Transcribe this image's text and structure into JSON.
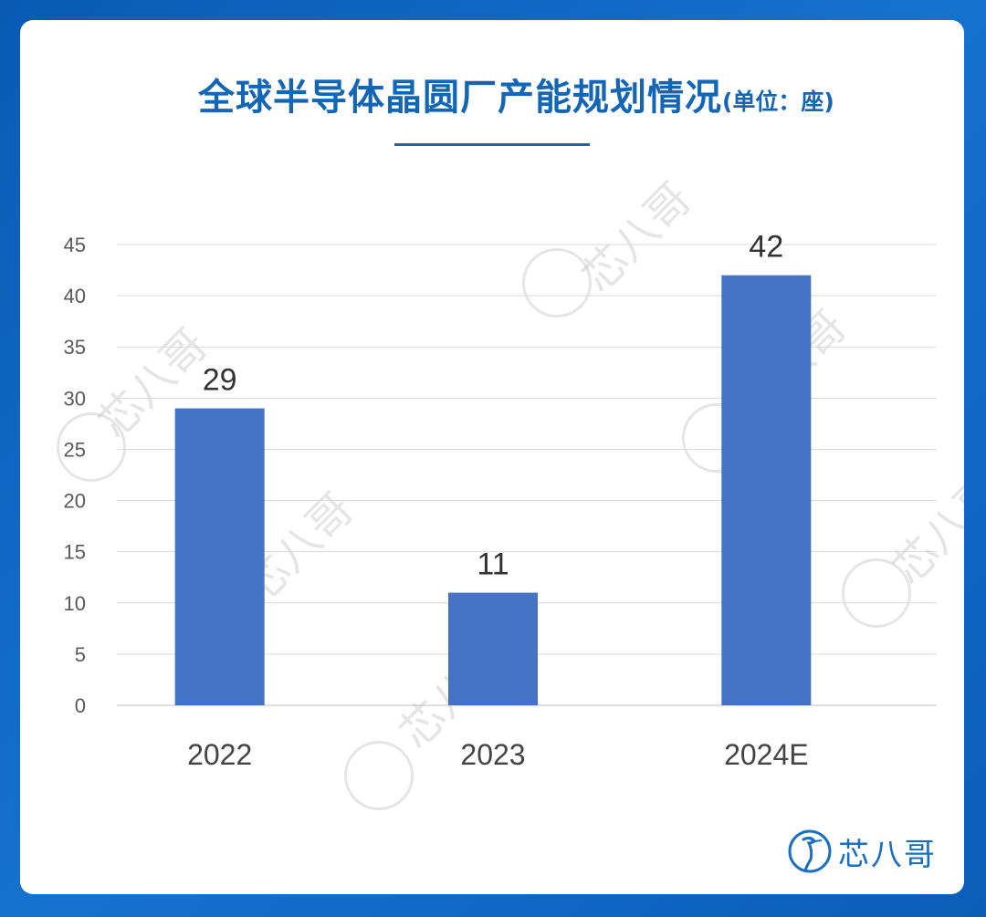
{
  "title": {
    "main": "全球半导体晶圆厂产能规划情况",
    "unit": "(单位：座)"
  },
  "colors": {
    "background": "#0d63bf",
    "bar": "#4472c4",
    "title": "#1266b5",
    "grid": "#d9d9d9"
  },
  "chart_data": {
    "type": "bar",
    "categories": [
      "2022",
      "2023",
      "2024E"
    ],
    "values": [
      29,
      11,
      42
    ],
    "ylim": [
      0,
      45
    ],
    "yticks": [
      0,
      5,
      10,
      15,
      20,
      25,
      30,
      35,
      40,
      45
    ],
    "grid": true,
    "data_labels": true
  },
  "watermark": {
    "text": "芯八哥"
  },
  "logo": {
    "text": "芯八哥",
    "icon": "heron-bird-icon"
  }
}
